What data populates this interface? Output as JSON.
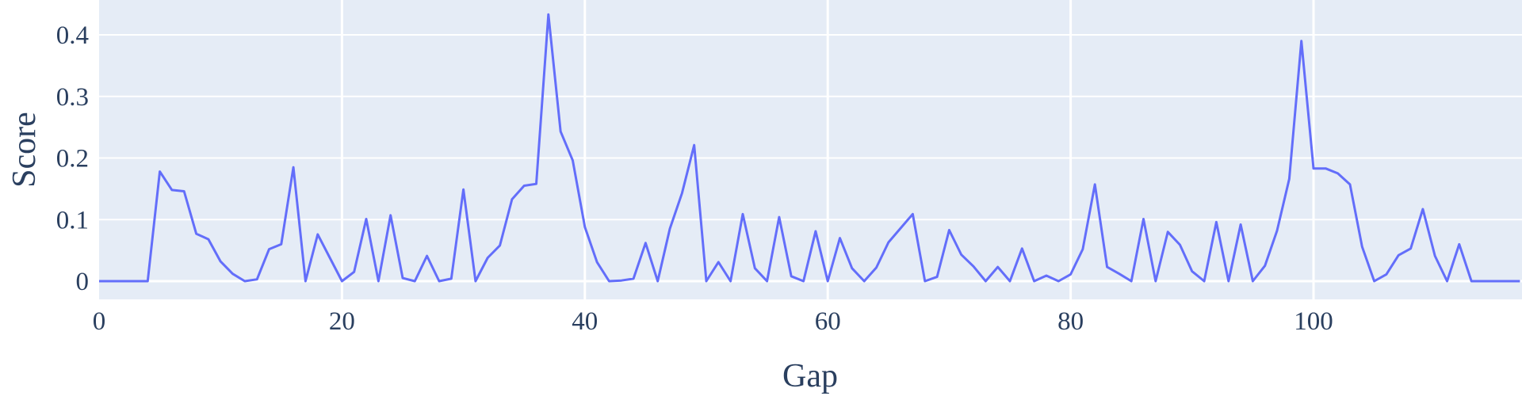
{
  "chart_data": {
    "type": "line",
    "title": "",
    "xlabel": "Gap",
    "ylabel": "Score",
    "xlim": [
      0,
      117
    ],
    "ylim": [
      -0.02,
      0.455
    ],
    "x_ticks": [
      0,
      20,
      40,
      60,
      80,
      100
    ],
    "y_ticks": [
      0,
      0.1,
      0.2,
      0.3,
      0.4
    ],
    "x_tick_labels": [
      "0",
      "20",
      "40",
      "60",
      "80",
      "100"
    ],
    "y_tick_labels": [
      "0",
      "0.1",
      "0.2",
      "0.3",
      "0.4"
    ],
    "grid": true,
    "legend": "none",
    "colors": {
      "plot_bg": "#e5ecf6",
      "grid": "#ffffff",
      "line": "#636efa",
      "text": "#2a3f5f"
    },
    "series": [
      {
        "x": [
          0,
          1,
          2,
          3,
          4,
          5,
          6,
          7,
          8,
          9,
          10,
          11,
          12,
          13,
          14,
          15,
          16,
          17,
          18,
          19,
          20,
          21,
          22,
          23,
          24,
          25,
          26,
          27,
          28,
          29,
          30,
          31,
          32,
          33,
          34,
          35,
          36,
          37,
          38,
          39,
          40,
          41,
          42,
          43,
          44,
          45,
          46,
          47,
          48,
          49,
          50,
          51,
          52,
          53,
          54,
          55,
          56,
          57,
          58,
          59,
          60,
          61,
          62,
          63,
          64,
          65,
          66,
          67,
          68,
          69,
          70,
          71,
          72,
          73,
          74,
          75,
          76,
          77,
          78,
          79,
          80,
          81,
          82,
          83,
          84,
          85,
          86,
          87,
          88,
          89,
          90,
          91,
          92,
          93,
          94,
          95,
          96,
          97,
          98,
          99,
          100,
          101,
          102,
          103,
          104,
          105,
          106,
          107,
          108,
          109,
          110,
          111,
          112,
          113,
          114,
          115,
          116,
          117
        ],
        "values": [
          0,
          0,
          0,
          0,
          0,
          0.178,
          0.148,
          0.146,
          0.077,
          0.068,
          0.032,
          0.012,
          0,
          0.003,
          0.052,
          0.06,
          0.185,
          0,
          0.076,
          0.038,
          0,
          0.015,
          0.101,
          0,
          0.107,
          0.005,
          0,
          0.041,
          0,
          0.004,
          0.149,
          0,
          0.038,
          0.058,
          0.133,
          0.155,
          0.158,
          0.433,
          0.243,
          0.196,
          0.088,
          0.031,
          0,
          0.001,
          0.004,
          0.062,
          0,
          0.085,
          0.143,
          0.221,
          0,
          0.031,
          0,
          0.109,
          0.021,
          0,
          0.104,
          0.008,
          0,
          0.081,
          0,
          0.07,
          0.021,
          0,
          0.022,
          0.063,
          0.086,
          0.109,
          0,
          0.007,
          0.083,
          0.043,
          0.024,
          0,
          0.023,
          0,
          0.053,
          0,
          0.009,
          0,
          0.011,
          0.052,
          0.157,
          0.023,
          0.012,
          0,
          0.101,
          0,
          0.08,
          0.059,
          0.016,
          0,
          0.096,
          0,
          0.092,
          0,
          0.025,
          0.082,
          0.166,
          0.39,
          0.183,
          0.183,
          0.175,
          0.157,
          0.056,
          0,
          0.011,
          0.042,
          0.053,
          0.117,
          0.041,
          0,
          0.06,
          0,
          0,
          0,
          0,
          0
        ]
      }
    ]
  }
}
